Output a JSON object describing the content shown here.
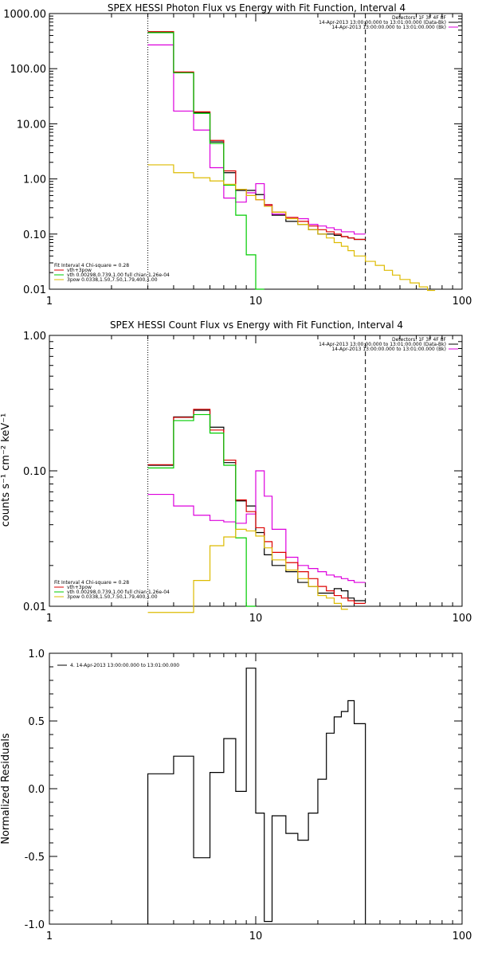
{
  "chart_data": [
    {
      "type": "line",
      "title": "SPEX HESSI Photon Flux vs Energy with Fit Function, Interval 4",
      "xlabel": "",
      "ylabel": "",
      "xscale": "log",
      "yscale": "log",
      "xlim": [
        1,
        100
      ],
      "ylim": [
        0.01,
        1000
      ],
      "xticks": [
        "1",
        "10",
        "100"
      ],
      "yticks": [
        "0.01",
        "0.10",
        "1.00",
        "10.00",
        "100.00",
        "1000.00"
      ],
      "vlines": {
        "dotted": 3.0,
        "dashed": 34.0
      },
      "legend_top": [
        "Detectors: 1F 3F 4F 8F",
        "14-Apr-2013 13:00:00.000 to 13:01:00.000 (Data-Bk)",
        "14-Apr-2013 13:00:00.000 to 13:01:00.000 (Bk)"
      ],
      "legend_top_colors": [
        "",
        "#000000",
        "#dd00dd"
      ],
      "legend_bottom": [
        "Fit Interval 4   Chi-square = 0.28",
        "vth+3pow",
        "vth 0.00298,0.739,1.00  full chian 1.26e-04",
        "3pow 0.0338,1.50,7.50,1.79,400,1.00"
      ],
      "legend_bottom_colors": [
        "",
        "#dd0000",
        "#00cc00",
        "#ddbb00"
      ],
      "edges": [
        3.0,
        4.0,
        5.0,
        6.0,
        7.0,
        8.0,
        9.0,
        10.0,
        11.0,
        12.0,
        14.0,
        16.0,
        18.0,
        20.0,
        22.0,
        24.0,
        26.0,
        28.0,
        30.0,
        34.0,
        38.0,
        42.0,
        46.0,
        50.0,
        56.0,
        62.0,
        68.0,
        74.0
      ],
      "series": [
        {
          "name": "Data-Bk",
          "color": "#000000",
          "values": [
            460,
            85,
            16,
            4.7,
            1.3,
            0.62,
            0.62,
            0.52,
            0.34,
            0.22,
            0.17,
            0.15,
            0.12,
            0.1,
            0.1,
            0.095,
            0.09,
            0.085,
            0.08
          ]
        },
        {
          "name": "Bk",
          "color": "#dd00dd",
          "values": [
            270,
            17,
            7.7,
            1.6,
            0.45,
            0.38,
            0.56,
            0.82,
            0.33,
            0.23,
            0.2,
            0.19,
            0.15,
            0.14,
            0.13,
            0.12,
            0.11,
            0.11,
            0.1
          ]
        },
        {
          "name": "vth+3pow",
          "color": "#dd0000",
          "values": [
            470,
            87,
            16.5,
            5.0,
            1.4,
            0.65,
            0.5,
            0.42,
            0.34,
            0.25,
            0.2,
            0.17,
            0.14,
            0.12,
            0.11,
            0.1,
            0.09,
            0.085,
            0.08
          ]
        },
        {
          "name": "vth",
          "color": "#00cc00",
          "values": [
            450,
            84,
            15.5,
            4.4,
            0.77,
            0.22,
            0.042,
            0.01
          ]
        },
        {
          "name": "3pow",
          "color": "#ddbb00",
          "values": [
            1.8,
            1.3,
            1.05,
            0.92,
            0.8,
            0.65,
            0.5,
            0.42,
            0.32,
            0.25,
            0.19,
            0.15,
            0.12,
            0.1,
            0.085,
            0.07,
            0.06,
            0.05,
            0.04,
            0.032,
            0.027,
            0.022,
            0.018,
            0.015,
            0.013,
            0.011,
            0.0095
          ]
        }
      ]
    },
    {
      "type": "line",
      "title": "SPEX HESSI Count Flux vs Energy with Fit Function, Interval 4",
      "xlabel": "",
      "ylabel": "counts s⁻¹ cm⁻² keV⁻¹",
      "xscale": "log",
      "yscale": "log",
      "xlim": [
        1,
        100
      ],
      "ylim": [
        0.01,
        1.0
      ],
      "xticks": [
        "1",
        "10",
        "100"
      ],
      "yticks": [
        "0.01",
        "0.10",
        "1.00"
      ],
      "vlines": {
        "dotted": 3.0,
        "dashed": 34.0
      },
      "legend_top": [
        "Detectors: 1F 3F 4F 8F",
        "14-Apr-2013 13:00:00.000 to 13:01:00.000 (Data-Bk)",
        "14-Apr-2013 13:00:00.000 to 13:01:00.000 (Bk)"
      ],
      "legend_top_colors": [
        "",
        "#000000",
        "#dd00dd"
      ],
      "legend_bottom": [
        "Fit Interval 4   Chi-square = 0.28",
        "vth+3pow",
        "vth 0.00298,0.739,1.00  full chian 1.26e-04",
        "3pow 0.0338,1.50,7.50,1.79,400,1.00"
      ],
      "legend_bottom_colors": [
        "",
        "#dd0000",
        "#00cc00",
        "#ddbb00"
      ],
      "edges": [
        3.0,
        4.0,
        5.0,
        6.0,
        7.0,
        8.0,
        9.0,
        10.0,
        11.0,
        12.0,
        14.0,
        16.0,
        18.0,
        20.0,
        22.0,
        24.0,
        26.0,
        28.0,
        30.0,
        34.0
      ],
      "series": [
        {
          "name": "Data-Bk",
          "color": "#000000",
          "values": [
            0.11,
            0.25,
            0.28,
            0.21,
            0.115,
            0.06,
            0.055,
            0.035,
            0.024,
            0.02,
            0.018,
            0.015,
            0.014,
            0.0125,
            0.0125,
            0.0135,
            0.013,
            0.0115,
            0.011
          ]
        },
        {
          "name": "Bk",
          "color": "#dd00dd",
          "values": [
            0.067,
            0.055,
            0.047,
            0.043,
            0.042,
            0.041,
            0.048,
            0.1,
            0.065,
            0.037,
            0.023,
            0.02,
            0.019,
            0.018,
            0.017,
            0.0165,
            0.016,
            0.0155,
            0.015
          ]
        },
        {
          "name": "vth+3pow",
          "color": "#dd0000",
          "values": [
            0.111,
            0.248,
            0.285,
            0.2,
            0.12,
            0.061,
            0.05,
            0.038,
            0.03,
            0.025,
            0.021,
            0.018,
            0.016,
            0.014,
            0.013,
            0.012,
            0.0115,
            0.011,
            0.0105
          ]
        },
        {
          "name": "vth",
          "color": "#00cc00",
          "values": [
            0.105,
            0.235,
            0.26,
            0.19,
            0.11,
            0.032,
            0.01
          ]
        },
        {
          "name": "3pow",
          "color": "#ddbb00",
          "values": [
            0.008,
            0.008,
            0.0155,
            0.028,
            0.0325,
            0.037,
            0.036,
            0.033,
            0.027,
            0.022,
            0.0185,
            0.016,
            0.014,
            0.012,
            0.0115,
            0.0105,
            0.0095
          ]
        }
      ]
    },
    {
      "type": "line",
      "title": "",
      "xlabel": "",
      "ylabel": "Normalized Residuals",
      "xscale": "log",
      "yscale": "linear",
      "xlim": [
        1,
        100
      ],
      "ylim": [
        -1.0,
        1.0
      ],
      "xticks": [
        "1",
        "10",
        "100"
      ],
      "yticks": [
        "-1.0",
        "-0.5",
        "0.0",
        "0.5",
        "1.0"
      ],
      "legend": "4. 14-Apr-2013 13:00:00.000 to 13:01:00.000",
      "edges": [
        3.0,
        4.0,
        5.0,
        6.0,
        7.0,
        8.0,
        9.0,
        10.0,
        11.0,
        12.0,
        14.0,
        16.0,
        18.0,
        20.0,
        22.0,
        24.0,
        26.0,
        28.0,
        30.0,
        34.0
      ],
      "series": [
        {
          "name": "",
          "color": "#000000",
          "values": [
            0.11,
            0.24,
            -0.51,
            0.12,
            0.37,
            -0.02,
            0.89,
            -0.18,
            -0.98,
            -0.2,
            -0.33,
            -0.38,
            -0.18,
            0.07,
            0.41,
            0.53,
            0.57,
            0.65,
            0.48
          ]
        }
      ]
    }
  ]
}
